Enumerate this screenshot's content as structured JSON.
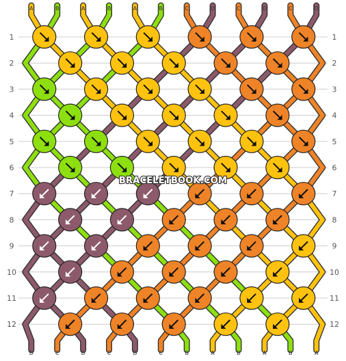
{
  "watermark": "BRACELETBOOK.COM",
  "colors": {
    "A": "#ffc20e",
    "B": "#8ddf0f",
    "C": "#ef8327",
    "D": "#8d5a6b"
  },
  "top_labels": [
    "A",
    "B",
    "A",
    "B",
    "A",
    "B",
    "C",
    "D",
    "C",
    "D",
    "C",
    "D"
  ],
  "bottom_labels": [
    "D",
    "C",
    "D",
    "C",
    "D",
    "C",
    "B",
    "A",
    "B",
    "A",
    "B",
    "A"
  ],
  "rows": [
    {
      "number": "1",
      "knots": [
        {
          "c": "A",
          "d": "R"
        },
        {
          "c": "A",
          "d": "R"
        },
        {
          "c": "A",
          "d": "R"
        },
        {
          "c": "C",
          "d": "R"
        },
        {
          "c": "C",
          "d": "R"
        },
        {
          "c": "C",
          "d": "R"
        }
      ]
    },
    {
      "number": "2",
      "knots": [
        {
          "c": "A",
          "d": "R"
        },
        {
          "c": "A",
          "d": "R"
        },
        {
          "c": "A",
          "d": "R"
        },
        {
          "c": "C",
          "d": "R"
        },
        {
          "c": "C",
          "d": "R"
        }
      ]
    },
    {
      "number": "3",
      "knots": [
        {
          "c": "B",
          "d": "R"
        },
        {
          "c": "A",
          "d": "R"
        },
        {
          "c": "A",
          "d": "R"
        },
        {
          "c": "A",
          "d": "R"
        },
        {
          "c": "C",
          "d": "R"
        },
        {
          "c": "C",
          "d": "R"
        }
      ]
    },
    {
      "number": "4",
      "knots": [
        {
          "c": "B",
          "d": "R"
        },
        {
          "c": "A",
          "d": "R"
        },
        {
          "c": "A",
          "d": "R"
        },
        {
          "c": "A",
          "d": "R"
        },
        {
          "c": "C",
          "d": "R"
        }
      ]
    },
    {
      "number": "5",
      "knots": [
        {
          "c": "B",
          "d": "R"
        },
        {
          "c": "B",
          "d": "R"
        },
        {
          "c": "A",
          "d": "R"
        },
        {
          "c": "A",
          "d": "R"
        },
        {
          "c": "A",
          "d": "R"
        },
        {
          "c": "C",
          "d": "R"
        }
      ]
    },
    {
      "number": "6",
      "knots": [
        {
          "c": "B",
          "d": "R"
        },
        {
          "c": "B",
          "d": "R"
        },
        {
          "c": "A",
          "d": "R"
        },
        {
          "c": "A",
          "d": "R"
        },
        {
          "c": "A",
          "d": "R"
        }
      ]
    },
    {
      "number": "7",
      "knots": [
        {
          "c": "D",
          "d": "L"
        },
        {
          "c": "D",
          "d": "L"
        },
        {
          "c": "D",
          "d": "L"
        },
        {
          "c": "C",
          "d": "L"
        },
        {
          "c": "C",
          "d": "L"
        },
        {
          "c": "C",
          "d": "L"
        }
      ]
    },
    {
      "number": "8",
      "knots": [
        {
          "c": "D",
          "d": "L"
        },
        {
          "c": "D",
          "d": "L"
        },
        {
          "c": "C",
          "d": "L"
        },
        {
          "c": "C",
          "d": "L"
        },
        {
          "c": "C",
          "d": "L"
        }
      ]
    },
    {
      "number": "9",
      "knots": [
        {
          "c": "D",
          "d": "L"
        },
        {
          "c": "D",
          "d": "L"
        },
        {
          "c": "C",
          "d": "L"
        },
        {
          "c": "C",
          "d": "L"
        },
        {
          "c": "C",
          "d": "L"
        },
        {
          "c": "A",
          "d": "L"
        }
      ]
    },
    {
      "number": "10",
      "knots": [
        {
          "c": "D",
          "d": "L"
        },
        {
          "c": "C",
          "d": "L"
        },
        {
          "c": "C",
          "d": "L"
        },
        {
          "c": "C",
          "d": "L"
        },
        {
          "c": "A",
          "d": "L"
        }
      ]
    },
    {
      "number": "11",
      "knots": [
        {
          "c": "D",
          "d": "L"
        },
        {
          "c": "C",
          "d": "L"
        },
        {
          "c": "C",
          "d": "L"
        },
        {
          "c": "C",
          "d": "L"
        },
        {
          "c": "A",
          "d": "L"
        },
        {
          "c": "A",
          "d": "L"
        }
      ]
    },
    {
      "number": "12",
      "knots": [
        {
          "c": "C",
          "d": "L"
        },
        {
          "c": "C",
          "d": "L"
        },
        {
          "c": "C",
          "d": "L"
        },
        {
          "c": "A",
          "d": "L"
        },
        {
          "c": "A",
          "d": "L"
        }
      ]
    }
  ]
}
